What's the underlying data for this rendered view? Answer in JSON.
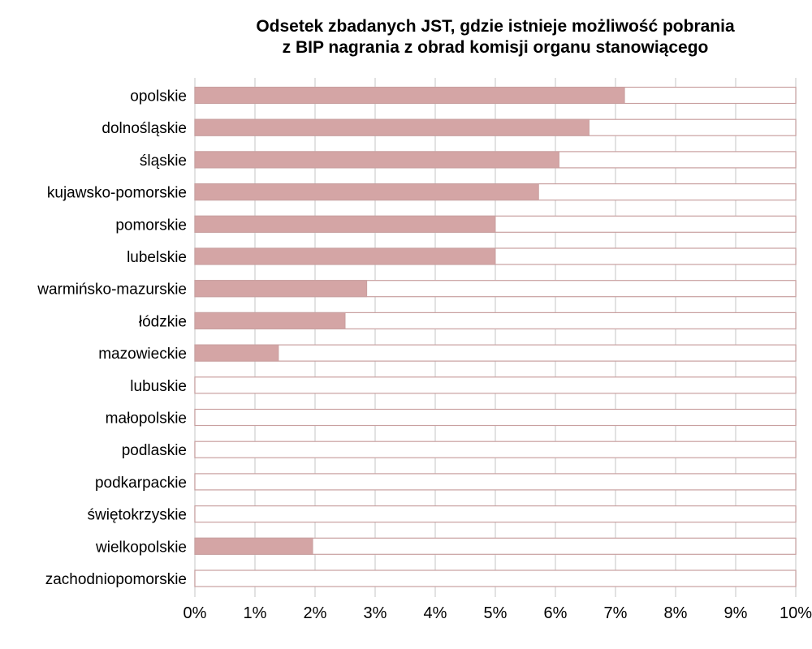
{
  "chart_data": {
    "type": "bar",
    "orientation": "horizontal",
    "title": [
      "Odsetek zbadanych JST, gdzie istnieje możliwość pobrania",
      "z BIP nagrania z obrad komisji organu stanowiącego"
    ],
    "categories": [
      "opolskie",
      "dolnośląskie",
      "śląskie",
      "kujawsko-pomorskie",
      "pomorskie",
      "lubelskie",
      "warmińsko-mazurskie",
      "łódzkie",
      "mazowieckie",
      "lubuskie",
      "małopolskie",
      "podlaskie",
      "podkarpackie",
      "świętokrzyskie",
      "wielkopolskie",
      "zachodniopomorskie"
    ],
    "values": [
      7.15,
      6.56,
      6.06,
      5.72,
      5.0,
      5.0,
      2.86,
      2.5,
      1.39,
      0,
      0,
      0,
      0,
      0,
      1.96,
      0
    ],
    "xlim": [
      0,
      10
    ],
    "x_ticks": [
      "0%",
      "1%",
      "2%",
      "3%",
      "4%",
      "5%",
      "6%",
      "7%",
      "8%",
      "9%",
      "10%"
    ],
    "xlabel": "",
    "ylabel": "",
    "grid": true,
    "colors": {
      "bar": "#d4a5a5",
      "bar_outline": "#c9a0a0",
      "grid": "#d9d9d9"
    }
  }
}
